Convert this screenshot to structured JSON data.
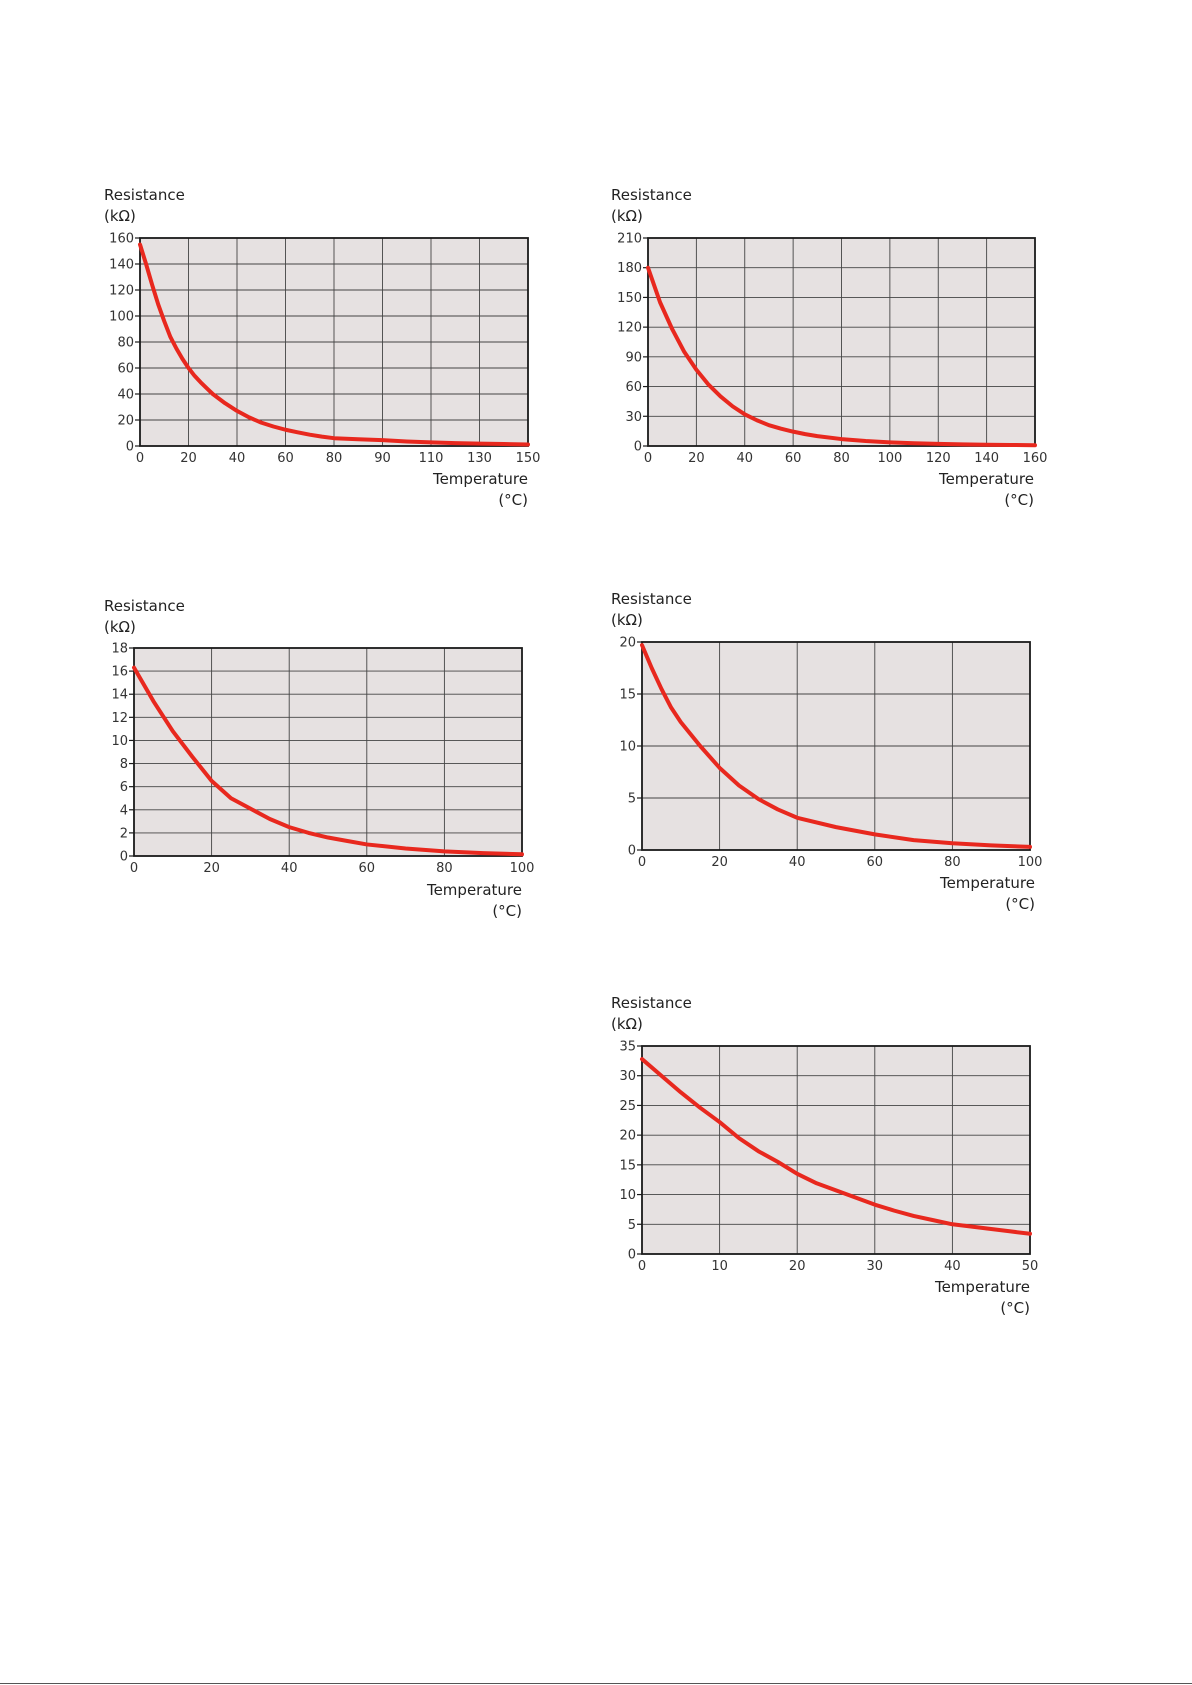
{
  "chart_data": [
    {
      "type": "line",
      "ylabel": [
        "Resistance",
        "(kΩ)"
      ],
      "xlabel": [
        "Temperature",
        "(°C)"
      ],
      "x_ticks": [
        "0",
        "20",
        "40",
        "60",
        "80",
        "90",
        "110",
        "130",
        "150"
      ],
      "y_ticks": [
        "0",
        "20",
        "40",
        "60",
        "80",
        "100",
        "120",
        "140",
        "160"
      ],
      "ylim": [
        0,
        160
      ],
      "grid": true,
      "series": [
        {
          "color": "#e8281e",
          "points": [
            [
              0,
              155
            ],
            [
              2.5,
              140
            ],
            [
              5,
              124
            ],
            [
              7.5,
              109
            ],
            [
              10,
              96
            ],
            [
              12.5,
              84
            ],
            [
              15,
              75
            ],
            [
              17.5,
              67
            ],
            [
              20,
              60
            ],
            [
              22.5,
              54
            ],
            [
              25,
              49
            ],
            [
              27.5,
              44.5
            ],
            [
              30,
              40
            ],
            [
              35,
              33
            ],
            [
              40,
              27
            ],
            [
              45,
              22
            ],
            [
              50,
              18
            ],
            [
              55,
              15
            ],
            [
              60,
              12.5
            ],
            [
              65,
              10.5
            ],
            [
              70,
              8.7
            ],
            [
              75,
              7.2
            ],
            [
              80,
              6
            ],
            [
              85,
              5.2
            ],
            [
              90,
              4.5
            ],
            [
              100,
              3.5
            ],
            [
              110,
              2.8
            ],
            [
              120,
              2.2
            ],
            [
              130,
              1.8
            ],
            [
              140,
              1.5
            ],
            [
              150,
              1.2
            ]
          ]
        }
      ]
    },
    {
      "type": "line",
      "ylabel": [
        "Resistance",
        "(kΩ)"
      ],
      "xlabel": [
        "Temperature",
        "(°C)"
      ],
      "x_ticks": [
        "0",
        "20",
        "40",
        "60",
        "80",
        "100",
        "120",
        "140",
        "160"
      ],
      "y_ticks": [
        "0",
        "30",
        "60",
        "90",
        "120",
        "150",
        "180",
        "210"
      ],
      "xlim": [
        0,
        160
      ],
      "ylim": [
        0,
        210
      ],
      "grid": true,
      "series": [
        {
          "color": "#e8281e",
          "points": [
            [
              0,
              180
            ],
            [
              5,
              145
            ],
            [
              10,
              118
            ],
            [
              15,
              95
            ],
            [
              20,
              77
            ],
            [
              25,
              62
            ],
            [
              30,
              50
            ],
            [
              35,
              40
            ],
            [
              40,
              32
            ],
            [
              45,
              26
            ],
            [
              50,
              21
            ],
            [
              55,
              17.5
            ],
            [
              60,
              14.5
            ],
            [
              65,
              12
            ],
            [
              70,
              10
            ],
            [
              80,
              7
            ],
            [
              90,
              5
            ],
            [
              100,
              3.7
            ],
            [
              110,
              2.8
            ],
            [
              120,
              2.2
            ],
            [
              130,
              1.7
            ],
            [
              140,
              1.3
            ],
            [
              150,
              1
            ],
            [
              160,
              0.8
            ]
          ]
        }
      ]
    },
    {
      "type": "line",
      "ylabel": [
        "Resistance",
        "(kΩ)"
      ],
      "xlabel": [
        "Temperature",
        "(°C)"
      ],
      "x_ticks": [
        "0",
        "20",
        "40",
        "60",
        "80",
        "100"
      ],
      "y_ticks": [
        "0",
        "2",
        "4",
        "6",
        "8",
        "10",
        "12",
        "14",
        "16",
        "18"
      ],
      "xlim": [
        0,
        100
      ],
      "ylim": [
        0,
        18
      ],
      "grid": true,
      "series": [
        {
          "color": "#e8281e",
          "points": [
            [
              0,
              16.3
            ],
            [
              5,
              13.4
            ],
            [
              10,
              10.8
            ],
            [
              15,
              8.6
            ],
            [
              20,
              6.5
            ],
            [
              25,
              5
            ],
            [
              30,
              4.1
            ],
            [
              35,
              3.2
            ],
            [
              40,
              2.5
            ],
            [
              45,
              2
            ],
            [
              50,
              1.6
            ],
            [
              55,
              1.3
            ],
            [
              60,
              1
            ],
            [
              70,
              0.65
            ],
            [
              80,
              0.4
            ],
            [
              90,
              0.25
            ],
            [
              100,
              0.15
            ]
          ]
        }
      ]
    },
    {
      "type": "line",
      "ylabel": [
        "Resistance",
        "(kΩ)"
      ],
      "xlabel": [
        "Temperature",
        "(°C)"
      ],
      "x_ticks": [
        "0",
        "20",
        "40",
        "60",
        "80",
        "100"
      ],
      "y_ticks": [
        "0",
        "5",
        "10",
        "15",
        "20"
      ],
      "xlim": [
        0,
        100
      ],
      "ylim": [
        0,
        20
      ],
      "grid": true,
      "series": [
        {
          "color": "#e8281e",
          "points": [
            [
              0,
              19.7
            ],
            [
              2.5,
              17.5
            ],
            [
              5,
              15.5
            ],
            [
              7.5,
              13.7
            ],
            [
              10,
              12.3
            ],
            [
              15,
              10
            ],
            [
              20,
              7.9
            ],
            [
              25,
              6.2
            ],
            [
              30,
              4.9
            ],
            [
              35,
              3.9
            ],
            [
              40,
              3.1
            ],
            [
              50,
              2.2
            ],
            [
              60,
              1.5
            ],
            [
              70,
              0.95
            ],
            [
              80,
              0.65
            ],
            [
              90,
              0.45
            ],
            [
              100,
              0.3
            ]
          ]
        }
      ]
    },
    {
      "type": "line",
      "ylabel": [
        "Resistance",
        "(kΩ)"
      ],
      "xlabel": [
        "Temperature",
        "(°C)"
      ],
      "x_ticks": [
        "0",
        "10",
        "20",
        "30",
        "40",
        "50"
      ],
      "y_ticks": [
        "0",
        "5",
        "10",
        "15",
        "20",
        "25",
        "30",
        "35"
      ],
      "xlim": [
        0,
        50
      ],
      "ylim": [
        0,
        35
      ],
      "grid": true,
      "series": [
        {
          "color": "#e8281e",
          "points": [
            [
              0,
              32.8
            ],
            [
              2.5,
              30
            ],
            [
              5,
              27.2
            ],
            [
              7.5,
              24.6
            ],
            [
              10,
              22.2
            ],
            [
              12.5,
              19.5
            ],
            [
              15,
              17.3
            ],
            [
              17.5,
              15.5
            ],
            [
              20,
              13.5
            ],
            [
              22.5,
              11.9
            ],
            [
              25,
              10.7
            ],
            [
              27.5,
              9.5
            ],
            [
              30,
              8.3
            ],
            [
              32.5,
              7.3
            ],
            [
              35,
              6.4
            ],
            [
              37.5,
              5.7
            ],
            [
              40,
              5
            ],
            [
              42.5,
              4.6
            ],
            [
              45,
              4.2
            ],
            [
              47.5,
              3.8
            ],
            [
              50,
              3.4
            ]
          ]
        }
      ]
    }
  ]
}
